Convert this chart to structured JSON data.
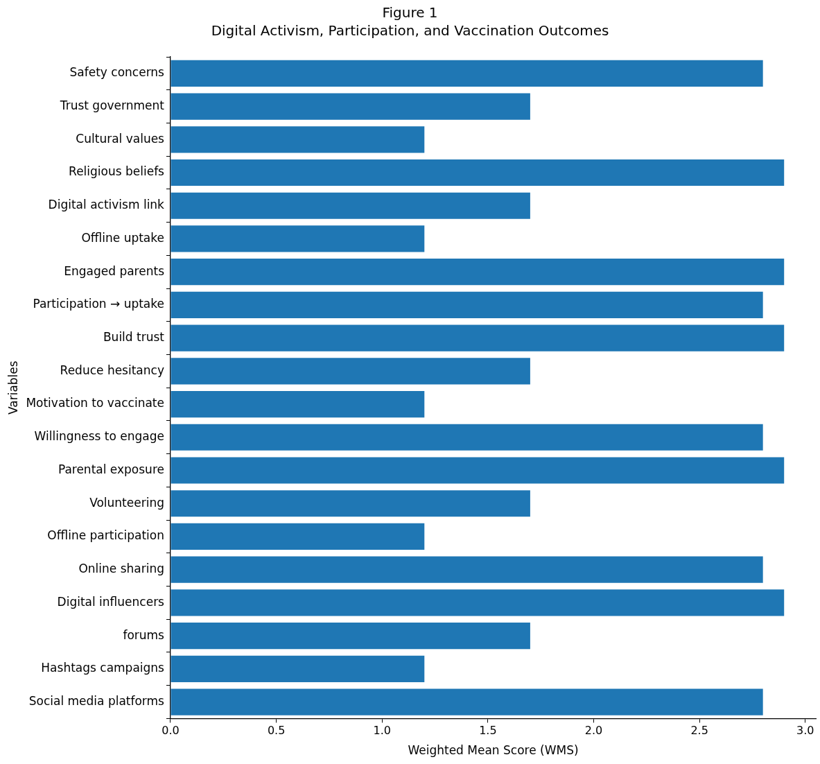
{
  "chart_data": {
    "type": "bar",
    "orientation": "horizontal",
    "title": "Figure 1",
    "subtitle": "Digital Activism, Participation, and Vaccination Outcomes",
    "xlabel": "Weighted Mean Score (WMS)",
    "ylabel": "Variables",
    "categories": [
      "Safety concerns",
      "Trust government",
      "Cultural values",
      "Religious beliefs",
      "Digital activism link",
      "Offline uptake",
      "Engaged parents",
      "Participation → uptake",
      "Build trust",
      "Reduce hesitancy",
      "Motivation to vaccinate",
      "Willingness to engage",
      "Parental exposure",
      "Volunteering",
      "Offline participation",
      "Online sharing",
      "Digital influencers",
      "forums",
      "Hashtags campaigns",
      "Social media platforms"
    ],
    "values": [
      2.8,
      1.7,
      1.2,
      2.9,
      1.7,
      1.2,
      2.9,
      2.8,
      2.9,
      1.7,
      1.2,
      2.8,
      2.9,
      1.7,
      1.2,
      2.8,
      2.9,
      1.7,
      1.2,
      2.8
    ],
    "color": "#1f77b4",
    "xlim": [
      0,
      3.05
    ],
    "xticks": [
      {
        "value": 0,
        "label": "0.0"
      },
      {
        "value": 0.5,
        "label": "0.5"
      },
      {
        "value": 1,
        "label": "1.0"
      },
      {
        "value": 1.5,
        "label": "1.5"
      },
      {
        "value": 2,
        "label": "2.0"
      },
      {
        "value": 2.5,
        "label": "2.5"
      },
      {
        "value": 3,
        "label": "3.0"
      }
    ]
  }
}
